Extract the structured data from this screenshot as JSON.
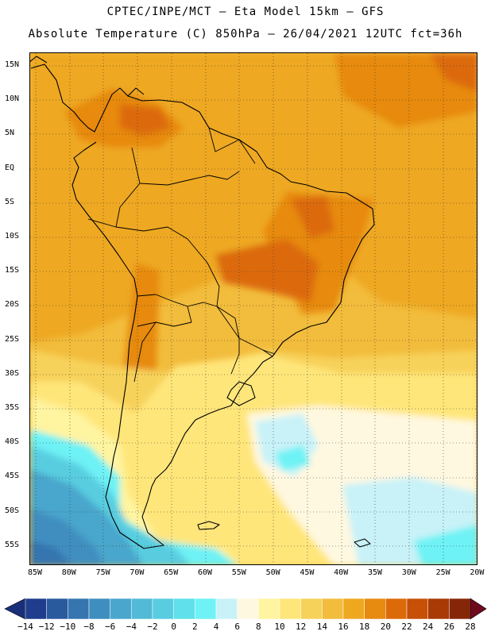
{
  "header": {
    "line1": "CPTEC/INPE/MCT –  Eta Model 15km – GFS",
    "line2": "Absolute Temperature (C) 850hPa – 26/04/2021 12UTC fct=36h"
  },
  "axes": {
    "lat_labels": [
      "15N",
      "10N",
      "5N",
      "EQ",
      "5S",
      "10S",
      "15S",
      "20S",
      "25S",
      "30S",
      "35S",
      "40S",
      "45S",
      "50S",
      "55S"
    ],
    "lon_labels": [
      "85W",
      "80W",
      "75W",
      "70W",
      "65W",
      "60W",
      "55W",
      "50W",
      "45W",
      "40W",
      "35W",
      "30W",
      "25W",
      "20W"
    ]
  },
  "colorbar": {
    "labels": [
      "-14",
      "-12",
      "-10",
      "-8",
      "-6",
      "-4",
      "-2",
      "0",
      "2",
      "4",
      "6",
      "8",
      "10",
      "12",
      "14",
      "16",
      "18",
      "20",
      "22",
      "24",
      "26",
      "28"
    ],
    "colors": [
      "#1f3d8c",
      "#2a5a9e",
      "#3575b0",
      "#3f8ec0",
      "#4aa6cc",
      "#52bad6",
      "#58cde0",
      "#5fe0ea",
      "#6ef2f5",
      "#c8f2f8",
      "#fff8e0",
      "#fff4a0",
      "#ffe67a",
      "#f7d25a",
      "#f2bc3c",
      "#eea820",
      "#e78a10",
      "#dc6a08",
      "#c65006",
      "#a83a06",
      "#862608"
    ],
    "under_color": "#1a2f7a",
    "over_color": "#6e0a1e"
  }
}
